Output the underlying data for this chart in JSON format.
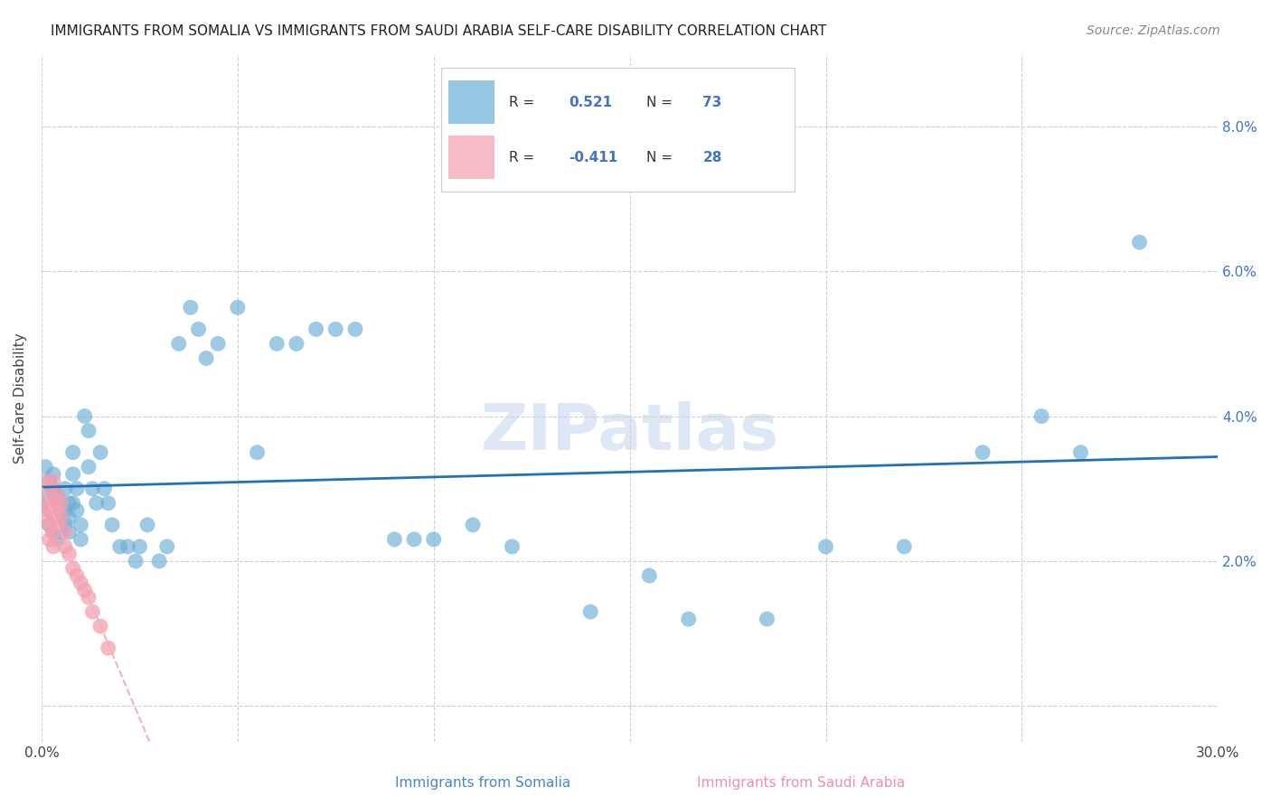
{
  "title": "IMMIGRANTS FROM SOMALIA VS IMMIGRANTS FROM SAUDI ARABIA SELF-CARE DISABILITY CORRELATION CHART",
  "source": "Source: ZipAtlas.com",
  "xlabel_somalia": "Immigrants from Somalia",
  "xlabel_saudi": "Immigrants from Saudi Arabia",
  "ylabel": "Self-Care Disability",
  "xlim": [
    0.0,
    0.3
  ],
  "ylim": [
    -0.005,
    0.09
  ],
  "yticks": [
    0.0,
    0.02,
    0.04,
    0.06,
    0.08
  ],
  "ytick_labels": [
    "",
    "2.0%",
    "4.0%",
    "6.0%",
    "8.0%"
  ],
  "xticks": [
    0.0,
    0.05,
    0.1,
    0.15,
    0.2,
    0.25,
    0.3
  ],
  "xtick_labels": [
    "0.0%",
    "",
    "",
    "",
    "",
    "",
    "30.0%"
  ],
  "R_somalia": 0.521,
  "N_somalia": 73,
  "R_saudi": -0.411,
  "N_saudi": 28,
  "somalia_color": "#6baed6",
  "saudi_color": "#f4a0b0",
  "somalia_line_color": "#2171b5",
  "saudi_line_color": "#f0b0c0",
  "watermark": "ZIPatlas",
  "watermark_color": "#c8d8f0",
  "background_color": "#ffffff",
  "grid_color": "#d0d0d0",
  "somalia_x": [
    0.001,
    0.001,
    0.002,
    0.002,
    0.002,
    0.002,
    0.003,
    0.003,
    0.003,
    0.003,
    0.004,
    0.004,
    0.004,
    0.004,
    0.005,
    0.005,
    0.005,
    0.006,
    0.006,
    0.006,
    0.007,
    0.007,
    0.007,
    0.008,
    0.008,
    0.008,
    0.009,
    0.009,
    0.01,
    0.01,
    0.011,
    0.012,
    0.012,
    0.013,
    0.014,
    0.015,
    0.016,
    0.017,
    0.018,
    0.02,
    0.022,
    0.024,
    0.025,
    0.027,
    0.03,
    0.032,
    0.035,
    0.038,
    0.04,
    0.042,
    0.045,
    0.05,
    0.055,
    0.06,
    0.065,
    0.07,
    0.075,
    0.08,
    0.09,
    0.095,
    0.1,
    0.11,
    0.12,
    0.14,
    0.155,
    0.165,
    0.185,
    0.2,
    0.22,
    0.24,
    0.255,
    0.265,
    0.28
  ],
  "somalia_y": [
    0.033,
    0.029,
    0.031,
    0.028,
    0.025,
    0.027,
    0.03,
    0.026,
    0.024,
    0.032,
    0.029,
    0.027,
    0.025,
    0.023,
    0.028,
    0.026,
    0.024,
    0.03,
    0.027,
    0.025,
    0.028,
    0.026,
    0.024,
    0.035,
    0.032,
    0.028,
    0.03,
    0.027,
    0.025,
    0.023,
    0.04,
    0.038,
    0.033,
    0.03,
    0.028,
    0.035,
    0.03,
    0.028,
    0.025,
    0.022,
    0.022,
    0.02,
    0.022,
    0.025,
    0.02,
    0.022,
    0.05,
    0.055,
    0.052,
    0.048,
    0.05,
    0.055,
    0.035,
    0.05,
    0.05,
    0.052,
    0.052,
    0.052,
    0.023,
    0.023,
    0.023,
    0.025,
    0.022,
    0.013,
    0.018,
    0.012,
    0.012,
    0.022,
    0.022,
    0.035,
    0.04,
    0.035,
    0.064
  ],
  "saudi_x": [
    0.001,
    0.001,
    0.001,
    0.002,
    0.002,
    0.002,
    0.002,
    0.003,
    0.003,
    0.003,
    0.003,
    0.003,
    0.004,
    0.004,
    0.004,
    0.005,
    0.005,
    0.006,
    0.006,
    0.007,
    0.008,
    0.009,
    0.01,
    0.011,
    0.012,
    0.013,
    0.015,
    0.017
  ],
  "saudi_y": [
    0.031,
    0.028,
    0.026,
    0.03,
    0.027,
    0.025,
    0.023,
    0.031,
    0.028,
    0.026,
    0.024,
    0.022,
    0.029,
    0.027,
    0.025,
    0.028,
    0.026,
    0.024,
    0.022,
    0.021,
    0.019,
    0.018,
    0.017,
    0.016,
    0.015,
    0.013,
    0.011,
    0.008
  ]
}
